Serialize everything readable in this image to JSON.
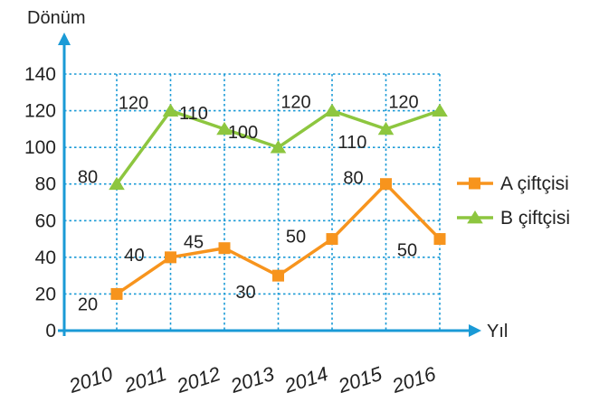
{
  "chart_data": {
    "type": "line",
    "ylabel": "Dönüm",
    "xlabel": "Yıl",
    "categories": [
      "2010",
      "2011",
      "2012",
      "2013",
      "2014",
      "2015",
      "2016"
    ],
    "y_ticks": [
      "0",
      "20",
      "40",
      "60",
      "80",
      "100",
      "120",
      "140"
    ],
    "ylim": [
      0,
      140
    ],
    "grid": true,
    "legend_position": "right",
    "series": [
      {
        "name": "A çiftçisi",
        "marker": "square",
        "color": "#f7941d",
        "values": [
          20,
          40,
          45,
          30,
          50,
          80,
          50
        ],
        "labels": [
          "20",
          "40",
          "45",
          "30",
          "50",
          "80",
          "50"
        ]
      },
      {
        "name": "B çiftçisi",
        "marker": "triangle",
        "color": "#8dc63f",
        "values": [
          80,
          120,
          110,
          100,
          120,
          110,
          120
        ],
        "labels": [
          "80",
          "120",
          "110",
          "100",
          "120",
          "110",
          "120"
        ]
      }
    ],
    "colors": {
      "axis": "#1a9ad6",
      "grid": "#1a9ad6"
    }
  }
}
